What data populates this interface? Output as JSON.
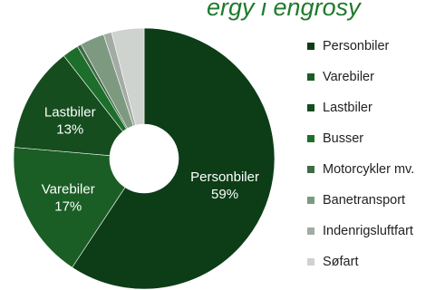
{
  "chart_data": {
    "type": "pie",
    "title_visible_text": "ergy i engrosy",
    "series": [
      {
        "name": "Personbiler",
        "value": 59,
        "label": "Personbiler",
        "pct": "59%",
        "color": "#0c3d16"
      },
      {
        "name": "Varebiler",
        "value": 17,
        "label": "Varebiler",
        "pct": "17%",
        "color": "#1a5e25"
      },
      {
        "name": "Lastbiler",
        "value": 13,
        "label": "Lastbiler",
        "pct": "13%",
        "color": "#154d1e"
      },
      {
        "name": "Busser",
        "value": 2,
        "label": "",
        "pct": "",
        "color": "#1d6e2b"
      },
      {
        "name": "Motorcykler mv.",
        "value": 0.5,
        "label": "",
        "pct": "",
        "color": "#3f6b45"
      },
      {
        "name": "Banetransport",
        "value": 3,
        "label": "",
        "pct": "",
        "color": "#7d9a80"
      },
      {
        "name": "Indenrigsluftfart",
        "value": 1,
        "label": "",
        "pct": "",
        "color": "#a3aca4"
      },
      {
        "name": "Søfart",
        "value": 4,
        "label": "",
        "pct": "",
        "color": "#cfd3cf"
      }
    ],
    "legend_position": "right"
  }
}
